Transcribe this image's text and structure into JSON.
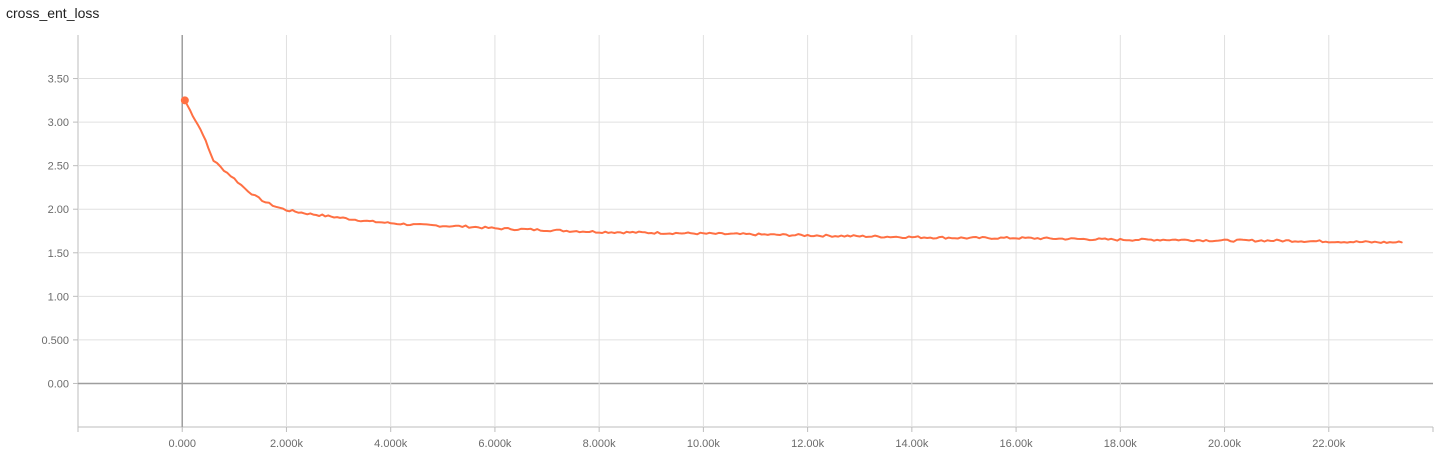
{
  "chart_data": {
    "type": "line",
    "title": "cross_ent_loss",
    "xlabel": "",
    "ylabel": "",
    "xlim": [
      -2000,
      24000
    ],
    "ylim": [
      -0.5,
      4.0
    ],
    "x_ticks": [
      0,
      2000,
      4000,
      6000,
      8000,
      10000,
      12000,
      14000,
      16000,
      18000,
      20000,
      22000
    ],
    "x_tick_labels": [
      "0.000",
      "2.000k",
      "4.000k",
      "6.000k",
      "8.000k",
      "10.00k",
      "12.00k",
      "14.00k",
      "16.00k",
      "18.00k",
      "20.00k",
      "22.00k"
    ],
    "y_ticks": [
      0,
      0.5,
      1.0,
      1.5,
      2.0,
      2.5,
      3.0,
      3.5
    ],
    "y_tick_labels": [
      "0.00",
      "0.500",
      "1.00",
      "1.50",
      "2.00",
      "2.50",
      "3.00",
      "3.50"
    ],
    "grid": true,
    "series": [
      {
        "name": "cross_ent_loss",
        "color": "#ff7043",
        "x": [
          50,
          200,
          300,
          400,
          500,
          600,
          800,
          1000,
          1200,
          1400,
          1600,
          1800,
          2000,
          2400,
          2800,
          3200,
          3600,
          4000,
          4500,
          5000,
          5500,
          6000,
          6500,
          7000,
          7500,
          8000,
          9000,
          10000,
          11000,
          12000,
          13000,
          14000,
          15000,
          16000,
          17000,
          18000,
          19000,
          20000,
          21000,
          22000,
          23000,
          23400
        ],
        "values": [
          3.25,
          3.08,
          2.97,
          2.86,
          2.7,
          2.56,
          2.45,
          2.35,
          2.24,
          2.15,
          2.08,
          2.03,
          1.99,
          1.95,
          1.92,
          1.89,
          1.86,
          1.84,
          1.82,
          1.81,
          1.8,
          1.78,
          1.77,
          1.76,
          1.75,
          1.74,
          1.73,
          1.72,
          1.71,
          1.7,
          1.69,
          1.68,
          1.67,
          1.67,
          1.66,
          1.65,
          1.65,
          1.64,
          1.64,
          1.63,
          1.62,
          1.62
        ]
      }
    ]
  }
}
